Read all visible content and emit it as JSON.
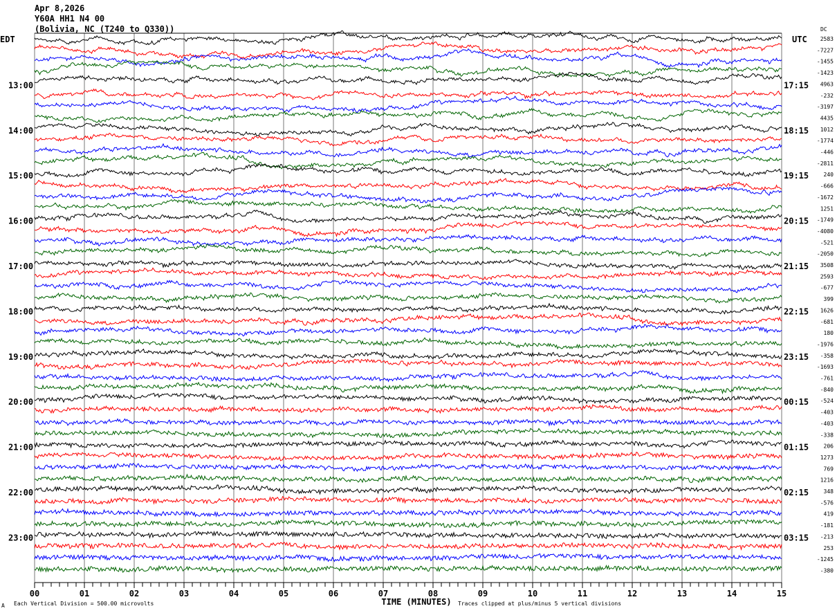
{
  "header": {
    "date": "Apr 8,2026",
    "station": "Y60A HH1 N4 00",
    "location": "(Bolivia, NC (T240 to Q330))"
  },
  "chart_data": {
    "type": "line",
    "subtype": "helicorder",
    "left_timezone": "EDT",
    "right_timezone": "UTC",
    "dc_header": "DC",
    "xlabel": "TIME (MINUTES)",
    "xlim": [
      0,
      15
    ],
    "x_ticks": [
      "00",
      "01",
      "02",
      "03",
      "04",
      "05",
      "06",
      "07",
      "08",
      "09",
      "10",
      "11",
      "12",
      "13",
      "14",
      "15"
    ],
    "left_labels": [
      "13:00",
      "14:00",
      "15:00",
      "16:00",
      "17:00",
      "18:00",
      "19:00",
      "20:00",
      "21:00",
      "22:00",
      "23:00"
    ],
    "right_labels": [
      "17:15",
      "18:15",
      "19:15",
      "20:15",
      "21:15",
      "22:15",
      "23:15",
      "00:15",
      "01:15",
      "02:15",
      "03:15"
    ],
    "dc_offsets": [
      2583,
      -7227,
      -1455,
      -1423,
      4963,
      -232,
      -3197,
      4435,
      1012,
      -1774,
      -446,
      -2811,
      240,
      -666,
      -1672,
      1251,
      -1749,
      -4080,
      -521,
      -2050,
      3508,
      2593,
      -677,
      399,
      1626,
      -681,
      180,
      -1976,
      -358,
      -1693,
      -761,
      -840,
      -524,
      -403,
      -403,
      -338,
      206,
      1273,
      769,
      1216,
      348,
      -576,
      419,
      -181,
      -213,
      253,
      -1245,
      -380
    ],
    "trace_colors": [
      "#000000",
      "#ff0000",
      "#0000ff",
      "#006400"
    ],
    "grid": true,
    "scale_note": "Each Vertical Division =  500.00 microvolts",
    "clip_note": "Traces clipped at plus/minus 5 vertical divisions",
    "corner_mark": "A"
  }
}
